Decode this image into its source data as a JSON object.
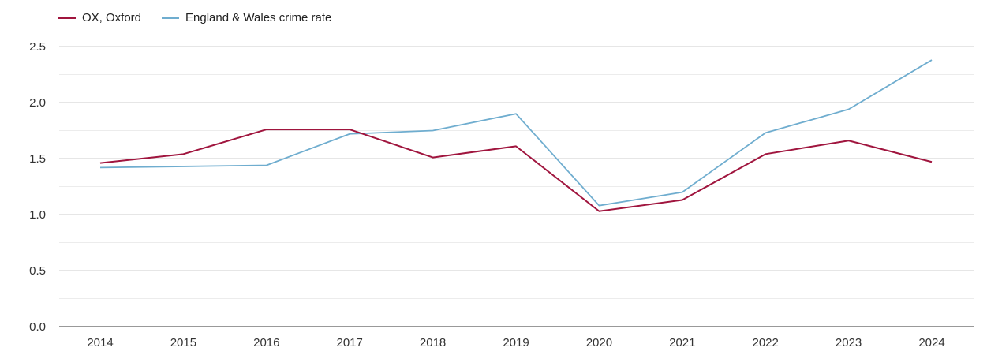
{
  "chart_data": {
    "type": "line",
    "title": "",
    "xlabel": "",
    "ylabel": "",
    "ylim": [
      0,
      2.5
    ],
    "y_ticks": [
      "0.0",
      "0.5",
      "1.0",
      "1.5",
      "2.0",
      "2.5"
    ],
    "categories": [
      "2014",
      "2015",
      "2016",
      "2017",
      "2018",
      "2019",
      "2020",
      "2021",
      "2022",
      "2023",
      "2024"
    ],
    "series": [
      {
        "name": "OX, Oxford",
        "color": "#a0153e",
        "values": [
          1.46,
          1.54,
          1.76,
          1.76,
          1.51,
          1.61,
          1.03,
          1.13,
          1.54,
          1.66,
          1.47
        ]
      },
      {
        "name": "England & Wales crime rate",
        "color": "#6fadcf",
        "values": [
          1.42,
          1.43,
          1.44,
          1.72,
          1.75,
          1.9,
          1.08,
          1.2,
          1.73,
          1.94,
          2.38
        ]
      }
    ],
    "legend_position": "top-left",
    "grid": true
  }
}
